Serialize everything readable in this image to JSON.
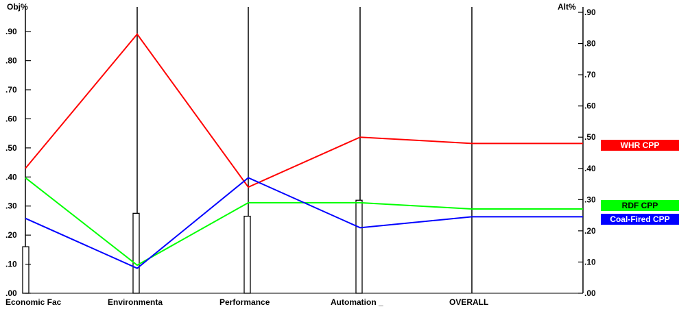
{
  "chart_data": {
    "type": "line",
    "title": "",
    "left_axis_label": "Obj%",
    "right_axis_label": "Alt%",
    "left_axis": {
      "ylim": [
        0,
        0.99
      ],
      "ticks": [
        0,
        0.1,
        0.2,
        0.3,
        0.4,
        0.5,
        0.6,
        0.7,
        0.8,
        0.9
      ],
      "tick_labels": [
        ".00",
        ".10",
        ".20",
        ".30",
        ".40",
        ".50",
        ".60",
        ".70",
        ".80",
        ".90"
      ]
    },
    "right_axis": {
      "ylim": [
        0,
        0.9
      ],
      "ticks": [
        0,
        0.1,
        0.2,
        0.3,
        0.4,
        0.5,
        0.6,
        0.7,
        0.8,
        0.9
      ],
      "tick_labels": [
        ".00",
        ".10",
        ".20",
        ".30",
        ".40",
        ".50",
        ".60",
        ".70",
        ".80",
        ".90"
      ]
    },
    "categories": [
      "Economic Fac",
      "Environmenta",
      "Performance",
      "Automation _",
      "OVERALL"
    ],
    "objective_weights": [
      0.16,
      0.275,
      0.265,
      0.32,
      0
    ],
    "series": [
      {
        "name": "WHR CPP",
        "color": "#ff0000",
        "values": [
          0.4,
          0.83,
          0.34,
          0.5,
          0.48
        ],
        "end_value": 0.48
      },
      {
        "name": "RDF CPP",
        "color": "#00ff00",
        "values": [
          0.37,
          0.09,
          0.29,
          0.29,
          0.27
        ],
        "end_value": 0.27
      },
      {
        "name": "Coal-Fired CPP",
        "color": "#0000ff",
        "values": [
          0.24,
          0.08,
          0.37,
          0.21,
          0.245
        ],
        "end_value": 0.245
      }
    ],
    "grid": false,
    "legend": "right"
  }
}
